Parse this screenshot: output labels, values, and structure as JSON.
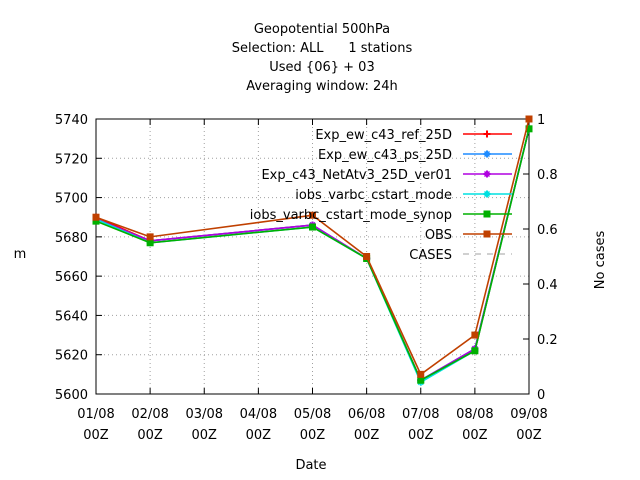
{
  "chart_data": {
    "type": "line",
    "title_lines": [
      "Geopotential 500hPa",
      "Selection: ALL      1 stations",
      "Used {06} + 03",
      "Averaging window: 24h"
    ],
    "xlabel": "Date",
    "ylabel": "m",
    "y2label": "No cases",
    "categories": [
      "01/08\n00Z",
      "02/08\n00Z",
      "03/08\n00Z",
      "04/08\n00Z",
      "05/08\n00Z",
      "06/08\n00Z",
      "07/08\n00Z",
      "08/08\n00Z",
      "09/08\n00Z"
    ],
    "ylim": [
      5600,
      5740
    ],
    "yticks": [
      5600,
      5620,
      5640,
      5660,
      5680,
      5700,
      5720,
      5740
    ],
    "y2lim": [
      0,
      1
    ],
    "y2ticks": [
      0,
      0.2,
      0.4,
      0.6,
      0.8,
      1
    ],
    "grid": true,
    "legend_position": "top-right",
    "series": [
      {
        "name": "Exp_ew_c43_ref_25D",
        "color": "#ff0000",
        "marker": "plus",
        "x": [
          0,
          1,
          4,
          5,
          6,
          7,
          8
        ],
        "values": [
          5690,
          5678,
          5686,
          5669,
          5607,
          5622,
          5735
        ]
      },
      {
        "name": "Exp_ew_c43_ps_25D",
        "color": "#1e8cff",
        "marker": "star",
        "x": [
          0,
          1,
          4,
          5,
          6,
          7,
          8
        ],
        "values": [
          5689,
          5678,
          5686,
          5669,
          5607,
          5623,
          5735
        ]
      },
      {
        "name": "Exp_c43_NetAtv3_25D_ver01",
        "color": "#b000e0",
        "marker": "star",
        "x": [
          0,
          1,
          4,
          5,
          6,
          7,
          8
        ],
        "values": [
          5689,
          5678,
          5686,
          5669,
          5607,
          5623,
          5735
        ]
      },
      {
        "name": "iobs_varbc_cstart_mode",
        "color": "#00e0e0",
        "marker": "star",
        "x": [
          0,
          1,
          4,
          5,
          6,
          7,
          8
        ],
        "values": [
          5689,
          5677,
          5685,
          5669,
          5606,
          5622,
          5735
        ]
      },
      {
        "name": "iobs_varbc_cstart_mode_synop",
        "color": "#00b000",
        "marker": "square",
        "x": [
          0,
          1,
          4,
          5,
          6,
          7,
          8
        ],
        "values": [
          5688,
          5677,
          5685,
          5669,
          5607,
          5622,
          5735
        ]
      },
      {
        "name": "OBS",
        "color": "#c04000",
        "marker": "square",
        "x": [
          0,
          1,
          4,
          5,
          6,
          7,
          8
        ],
        "values": [
          5690,
          5680,
          5691,
          5670,
          5610,
          5630,
          5740
        ]
      },
      {
        "name": "CASES",
        "color": "#a0a0a0",
        "marker": "none",
        "dashed": true,
        "x": [],
        "values": []
      }
    ]
  }
}
